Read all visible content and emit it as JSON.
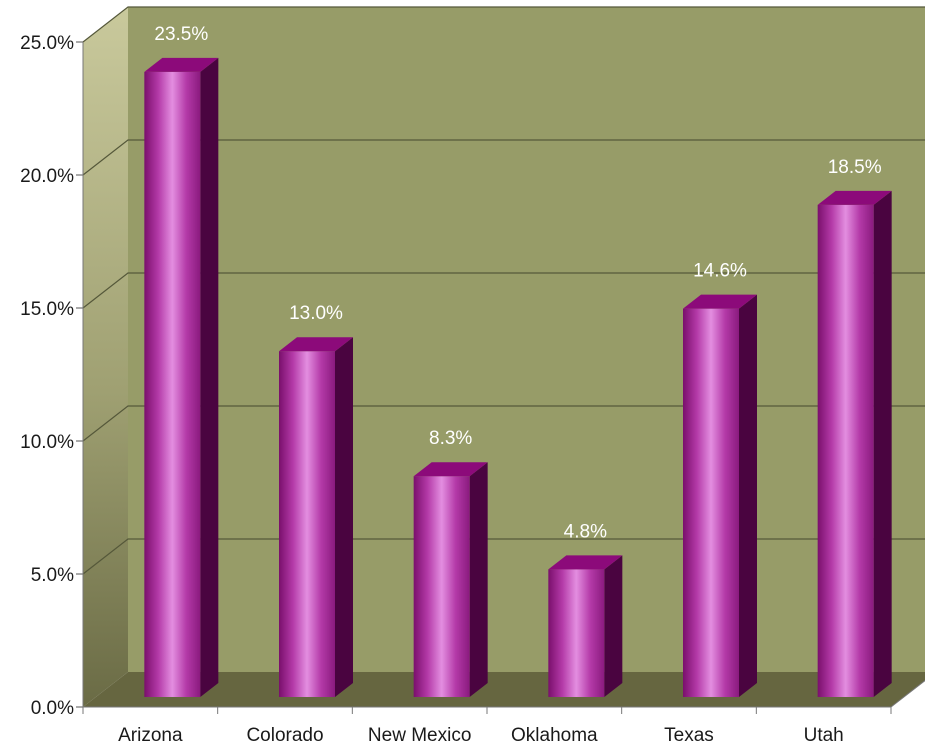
{
  "chart_data": {
    "type": "bar",
    "categories": [
      "Arizona",
      "Colorado",
      "New Mexico",
      "Oklahoma",
      "Texas",
      "Utah"
    ],
    "values": [
      23.5,
      13.0,
      8.3,
      4.8,
      14.6,
      18.5
    ],
    "data_labels": [
      "23.5%",
      "13.0%",
      "8.3%",
      "4.8%",
      "14.6%",
      "18.5%"
    ],
    "yticks": [
      0,
      5,
      10,
      15,
      20,
      25
    ],
    "ytick_labels": [
      "0.0%",
      "5.0%",
      "10.0%",
      "15.0%",
      "20.0%",
      "25.0%"
    ],
    "ylim": [
      0,
      25
    ],
    "grid": true,
    "legend": false,
    "style": "3d-cylinder"
  },
  "colors": {
    "back_wall": "#979c68",
    "side_wall": "#c3c394",
    "floor": "#666640",
    "gridline": "#55583a",
    "bar_main": "#b43aa8",
    "bar_highlight": "#e38ee0",
    "bar_side": "#4a0440",
    "bar_top": "#8c0a7a"
  }
}
